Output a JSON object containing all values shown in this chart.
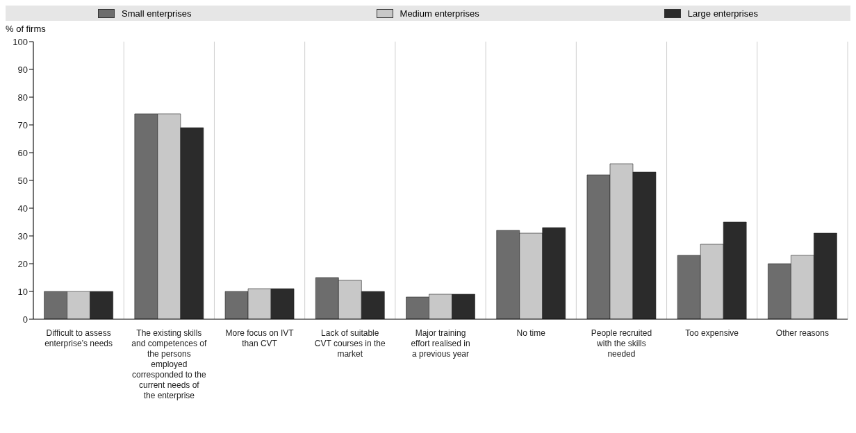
{
  "chart_data": {
    "type": "bar",
    "ylabel": "% of firms",
    "categories": [
      "Difficult to assess enterprise’s needs",
      "The existing skills and competences of the persons employed corresponded to the current needs of the enterprise",
      "More focus on IVT than CVT",
      "Lack of suitable CVT courses in the market",
      "Major training effort realised in a previous year",
      "No time",
      "People recruited with the skills needed",
      "Too expensive",
      "Other reasons"
    ],
    "series": [
      {
        "name": "Small enterprises",
        "color": "#6d6d6d",
        "values": [
          10,
          74,
          10,
          15,
          8,
          32,
          52,
          23,
          20
        ]
      },
      {
        "name": "Medium enterprises",
        "color": "#c8c8c8",
        "values": [
          10,
          74,
          11,
          14,
          9,
          31,
          56,
          27,
          23
        ]
      },
      {
        "name": "Large enterprises",
        "color": "#2b2b2b",
        "values": [
          10,
          69,
          11,
          10,
          9,
          33,
          53,
          35,
          31
        ]
      }
    ],
    "ylim": [
      0,
      100
    ],
    "yticks": [
      0,
      10,
      20,
      30,
      40,
      50,
      60,
      70,
      80,
      90,
      100
    ],
    "grid": "x",
    "legend": "top"
  }
}
